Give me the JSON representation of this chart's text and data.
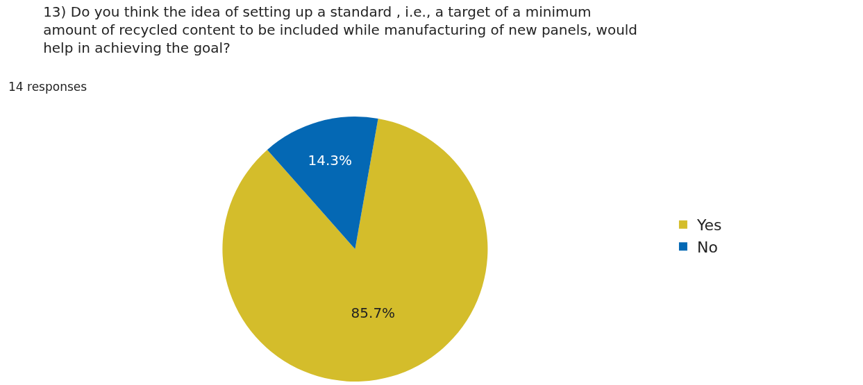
{
  "chart_data": {
    "type": "pie",
    "title": "13) Do you think the idea of setting up a standard , i.e., a target of a minimum amount of recycled content to be included while manufacturing of new panels, would help in achieving the goal?",
    "subtitle": "14 responses",
    "categories": [
      "Yes",
      "No"
    ],
    "values": [
      85.7,
      14.3
    ],
    "colors": [
      "#d4bd2b",
      "#0468b4"
    ],
    "value_labels": [
      "85.7%",
      "14.3%"
    ],
    "legend": "right"
  }
}
